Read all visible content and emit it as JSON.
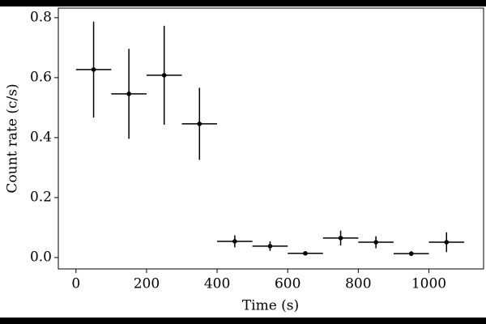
{
  "chart_data": {
    "type": "scatter",
    "x_label": "Time (s)",
    "y_label": "Count rate (c/s)",
    "x": [
      50,
      150,
      250,
      350,
      450,
      550,
      650,
      750,
      850,
      950,
      1050
    ],
    "values": [
      0.627,
      0.546,
      0.608,
      0.446,
      0.054,
      0.038,
      0.014,
      0.065,
      0.051,
      0.013,
      0.051
    ],
    "xerr": [
      50,
      50,
      50,
      50,
      50,
      50,
      50,
      50,
      50,
      50,
      50
    ],
    "yerr": [
      0.16,
      0.15,
      0.165,
      0.12,
      0.02,
      0.016,
      0.006,
      0.025,
      0.02,
      0.008,
      0.033
    ],
    "color": "#000000",
    "xlim": [
      -50,
      1155
    ],
    "ylim": [
      -0.038,
      0.832
    ],
    "xticks": [
      0,
      200,
      400,
      600,
      800,
      1000
    ],
    "yticks": [
      {
        "value": 0,
        "label": "0.0"
      },
      0.2,
      0.4,
      0.6,
      0.8
    ]
  }
}
